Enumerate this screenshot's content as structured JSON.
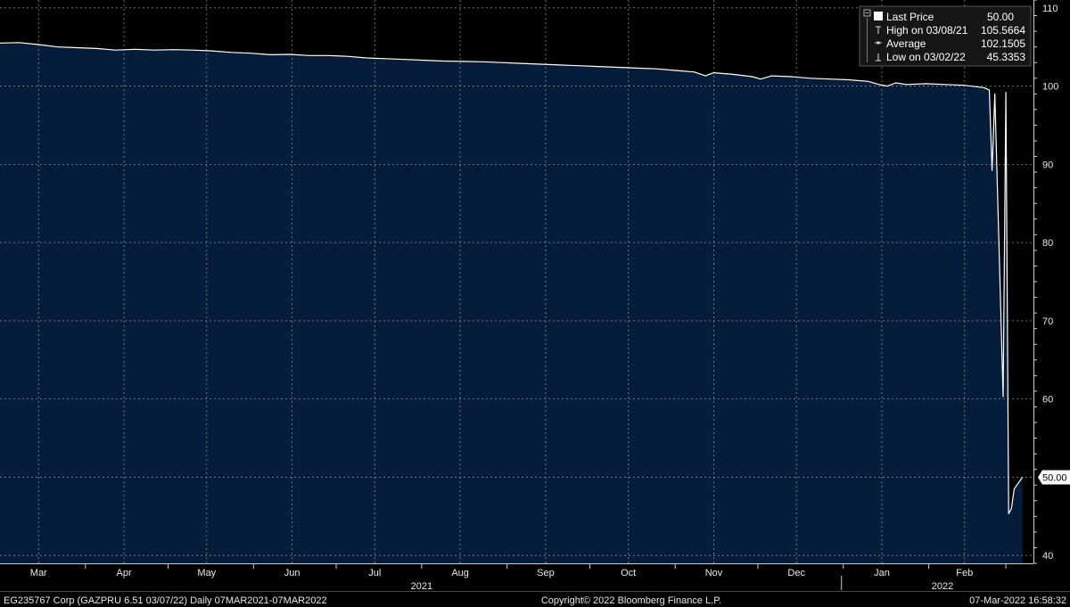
{
  "footer": {
    "security": "EG235767 Corp (GAZPRU 6.51 03/07/22)  Daily 07MAR2021-07MAR2022",
    "copyright": "Copyright© 2022 Bloomberg Finance L.P.",
    "timestamp": "07-Mar-2022 16:58:32"
  },
  "legend": {
    "items": [
      {
        "label": "Last Price",
        "value": "50.00"
      },
      {
        "label": "High on 03/08/21",
        "value": "105.5664"
      },
      {
        "label": "Average",
        "value": "102.1505"
      },
      {
        "label": "Low on 03/02/22",
        "value": "45.3353"
      }
    ]
  },
  "last_price_tag": "50.00",
  "colors": {
    "background": "#000000",
    "area_fill": "#061c3b",
    "line": "#ffffff",
    "grid": "#9a9a9a",
    "legend_bg": "#161616"
  },
  "chart_data": {
    "type": "area",
    "x_axis_type": "date",
    "grid": true,
    "legend_position": "top-right",
    "ylim": [
      39,
      111
    ],
    "yticks": [
      40,
      50,
      60,
      70,
      80,
      90,
      100,
      110
    ],
    "xlim": [
      "2021-03-01",
      "2022-03-11"
    ],
    "month_ticks": [
      {
        "label": "Mar",
        "date": "2021-03-15"
      },
      {
        "label": "Apr",
        "date": "2021-04-15"
      },
      {
        "label": "May",
        "date": "2021-05-15"
      },
      {
        "label": "Jun",
        "date": "2021-06-15"
      },
      {
        "label": "Jul",
        "date": "2021-07-15"
      },
      {
        "label": "Aug",
        "date": "2021-08-15"
      },
      {
        "label": "Sep",
        "date": "2021-09-15"
      },
      {
        "label": "Oct",
        "date": "2021-10-15"
      },
      {
        "label": "Nov",
        "date": "2021-11-15"
      },
      {
        "label": "Dec",
        "date": "2021-12-15"
      },
      {
        "label": "Jan",
        "date": "2022-01-15"
      },
      {
        "label": "Feb",
        "date": "2022-02-14"
      }
    ],
    "year_labels": [
      {
        "label": "2021",
        "date": "2021-08-01"
      },
      {
        "label": "2022",
        "date": "2022-02-06"
      }
    ],
    "series": [
      {
        "name": "Last Price",
        "points": [
          [
            "2021-03-01",
            105.5
          ],
          [
            "2021-03-08",
            105.55
          ],
          [
            "2021-03-15",
            105.3
          ],
          [
            "2021-03-22",
            105.0
          ],
          [
            "2021-03-29",
            104.9
          ],
          [
            "2021-04-05",
            104.8
          ],
          [
            "2021-04-12",
            104.6
          ],
          [
            "2021-04-19",
            104.7
          ],
          [
            "2021-04-26",
            104.6
          ],
          [
            "2021-05-03",
            104.65
          ],
          [
            "2021-05-10",
            104.6
          ],
          [
            "2021-05-17",
            104.5
          ],
          [
            "2021-05-24",
            104.3
          ],
          [
            "2021-05-31",
            104.2
          ],
          [
            "2021-06-07",
            104.0
          ],
          [
            "2021-06-14",
            104.05
          ],
          [
            "2021-06-21",
            103.9
          ],
          [
            "2021-06-28",
            103.9
          ],
          [
            "2021-07-05",
            103.8
          ],
          [
            "2021-07-12",
            103.6
          ],
          [
            "2021-07-19",
            103.5
          ],
          [
            "2021-07-26",
            103.4
          ],
          [
            "2021-08-02",
            103.3
          ],
          [
            "2021-08-09",
            103.2
          ],
          [
            "2021-08-16",
            103.15
          ],
          [
            "2021-08-23",
            103.1
          ],
          [
            "2021-08-30",
            103.0
          ],
          [
            "2021-09-06",
            102.9
          ],
          [
            "2021-09-13",
            102.8
          ],
          [
            "2021-09-20",
            102.7
          ],
          [
            "2021-09-27",
            102.6
          ],
          [
            "2021-10-04",
            102.5
          ],
          [
            "2021-10-11",
            102.4
          ],
          [
            "2021-10-18",
            102.3
          ],
          [
            "2021-10-25",
            102.2
          ],
          [
            "2021-11-01",
            102.0
          ],
          [
            "2021-11-08",
            101.8
          ],
          [
            "2021-11-12",
            101.3
          ],
          [
            "2021-11-15",
            101.7
          ],
          [
            "2021-11-22",
            101.5
          ],
          [
            "2021-11-29",
            101.2
          ],
          [
            "2021-12-02",
            100.9
          ],
          [
            "2021-12-06",
            101.3
          ],
          [
            "2021-12-13",
            101.2
          ],
          [
            "2021-12-20",
            101.0
          ],
          [
            "2021-12-27",
            100.9
          ],
          [
            "2022-01-03",
            100.8
          ],
          [
            "2022-01-10",
            100.6
          ],
          [
            "2022-01-14",
            100.2
          ],
          [
            "2022-01-17",
            100.0
          ],
          [
            "2022-01-20",
            100.4
          ],
          [
            "2022-01-24",
            100.2
          ],
          [
            "2022-01-31",
            100.3
          ],
          [
            "2022-02-07",
            100.2
          ],
          [
            "2022-02-14",
            100.1
          ],
          [
            "2022-02-21",
            99.8
          ],
          [
            "2022-02-23",
            99.5
          ],
          [
            "2022-02-24",
            89.2
          ],
          [
            "2022-02-25",
            99.0
          ],
          [
            "2022-02-28",
            60.3
          ],
          [
            "2022-03-01",
            99.2
          ],
          [
            "2022-03-02",
            45.3353
          ],
          [
            "2022-03-03",
            46.0
          ],
          [
            "2022-03-04",
            48.5
          ],
          [
            "2022-03-07",
            50.0
          ]
        ]
      }
    ]
  }
}
